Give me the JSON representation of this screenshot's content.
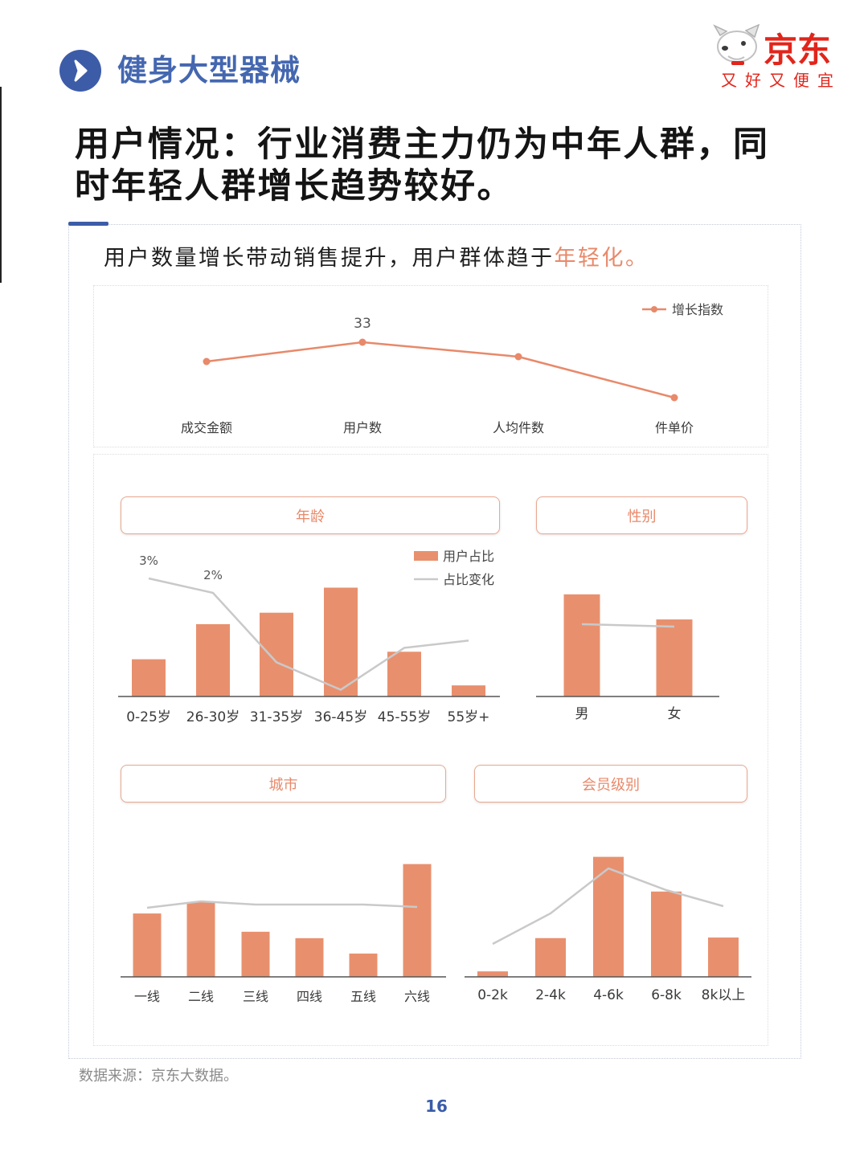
{
  "header": {
    "title": "健身大型器械"
  },
  "brand": {
    "name": "京东",
    "slogan": "又好又便宜"
  },
  "headline": {
    "line1": "用户情况：行业消费主力仍为中年人群，同",
    "line2": "时年轻人群增长趋势较好。"
  },
  "subtitle": {
    "text": "用户数量增长带动销售提升，用户群体趋于",
    "highlight": "年轻化。"
  },
  "footer": {
    "source": "数据来源：京东大数据。",
    "page_number": "16"
  },
  "icons": {
    "section": "chevron-right-icon",
    "brand": "jd-mascot-icon"
  },
  "colors": {
    "accent_blue": "#3d5ca8",
    "bar": "#e8906e",
    "line": "#c9c9c9",
    "highlight": "#e8896a",
    "brand_red": "#e1251b"
  },
  "chart_data": [
    {
      "type": "line",
      "title": "",
      "categories": [
        "成交金额",
        "用户数",
        "人均件数",
        "件单价"
      ],
      "series": [
        {
          "name": "增长指数",
          "values": [
            25,
            33,
            27,
            10
          ],
          "labels": [
            "",
            "33",
            "",
            ""
          ]
        }
      ],
      "ylim": [
        0,
        40
      ],
      "grid": false,
      "legend": "top-right"
    },
    {
      "type": "bar",
      "title": "年龄",
      "categories": [
        "0-25岁",
        "26-30岁",
        "31-35岁",
        "36-45岁",
        "45-55岁",
        "55岁+"
      ],
      "series": [
        {
          "name": "用户占比",
          "type": "bar",
          "values": [
            10.4,
            20.2,
            23.4,
            30.4,
            12.5,
            3.1
          ]
        },
        {
          "name": "占比变化",
          "type": "line",
          "axis": "secondary",
          "values": [
            3,
            2,
            -2.8,
            -4.7,
            -1.8,
            -1.3
          ],
          "labels": [
            "3%",
            "2%",
            "",
            "",
            "",
            ""
          ]
        }
      ],
      "ylim": [
        0,
        35
      ],
      "y2lim": [
        -6,
        5
      ],
      "grid": false,
      "legend": "top-right"
    },
    {
      "type": "bar",
      "title": "性别",
      "categories": [
        "男",
        "女"
      ],
      "series": [
        {
          "type": "bar",
          "values": [
            57,
            43
          ]
        },
        {
          "type": "line",
          "axis": "secondary",
          "values": [
            0.5,
            0.4
          ]
        }
      ],
      "ylim": [
        0,
        65
      ],
      "y2lim": [
        -2,
        2
      ],
      "grid": false
    },
    {
      "type": "bar",
      "title": "城市",
      "categories": [
        "一线",
        "二线",
        "三线",
        "四线",
        "五线",
        "六线"
      ],
      "series": [
        {
          "type": "bar",
          "values": [
            17.7,
            20.9,
            12.6,
            10.8,
            6.5,
            31.5
          ]
        },
        {
          "type": "line",
          "axis": "secondary",
          "values": [
            -0.2,
            0.2,
            0,
            0,
            0,
            -0.15
          ]
        }
      ],
      "ylim": [
        0,
        35
      ],
      "y2lim": [
        -5,
        5
      ],
      "grid": false
    },
    {
      "type": "bar",
      "title": "会员级别",
      "categories": [
        "0-2k",
        "2-4k",
        "4-6k",
        "6-8k",
        "8k以上"
      ],
      "series": [
        {
          "type": "bar",
          "values": [
            1.9,
            13.4,
            41.5,
            29.5,
            13.6
          ]
        },
        {
          "type": "line",
          "axis": "secondary",
          "values": [
            -2.45,
            -0.55,
            2.25,
            0.9,
            -0.1
          ]
        }
      ],
      "ylim": [
        0,
        45
      ],
      "y2lim": [
        -5,
        5
      ],
      "grid": false
    }
  ]
}
